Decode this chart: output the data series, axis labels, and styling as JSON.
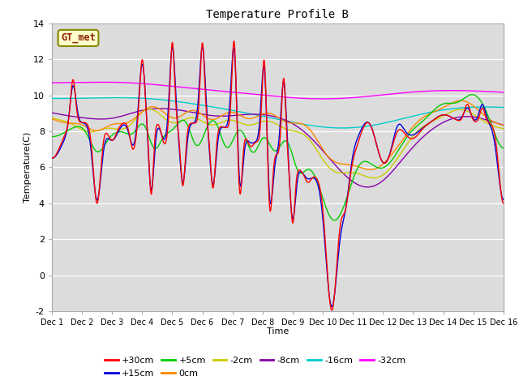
{
  "title": "Temperature Profile B",
  "xlabel": "Time",
  "ylabel": "Temperature(C)",
  "ylim": [
    -2,
    14
  ],
  "xlim": [
    0,
    15
  ],
  "xtick_labels": [
    "Dec 1",
    "Dec 2",
    "Dec 3",
    "Dec 4",
    "Dec 5",
    "Dec 6",
    "Dec 7",
    "Dec 8",
    "Dec 9",
    "Dec 10",
    "Dec 11",
    "Dec 12",
    "Dec 13",
    "Dec 14",
    "Dec 15",
    "Dec 16"
  ],
  "ytick_values": [
    -2,
    0,
    2,
    4,
    6,
    8,
    10,
    12,
    14
  ],
  "plot_bg_color": "#dcdcdc",
  "legend_entries": [
    "+30cm",
    "+15cm",
    "+5cm",
    "0cm",
    "-2cm",
    "-8cm",
    "-16cm",
    "-32cm"
  ],
  "legend_colors": [
    "#ff0000",
    "#0000dd",
    "#00cc00",
    "#ff8800",
    "#cccc00",
    "#8800aa",
    "#00cccc",
    "#ff00ff"
  ],
  "annotation_text": "GT_met",
  "annotation_bg": "#ffffcc",
  "annotation_border": "#888800",
  "title_font": "monospace",
  "title_fontsize": 10
}
